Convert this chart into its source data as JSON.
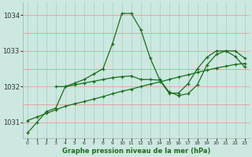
{
  "line1": {
    "x": [
      0,
      1,
      2,
      3,
      4,
      5,
      6,
      7,
      8,
      9,
      10,
      11,
      12,
      13,
      14,
      15,
      16,
      17,
      18,
      19,
      20,
      21,
      22,
      23
    ],
    "y": [
      1030.7,
      1031.0,
      1031.3,
      1031.4,
      1032.0,
      1032.1,
      1032.2,
      1032.35,
      1032.5,
      1033.2,
      1034.05,
      1034.05,
      1033.6,
      1032.8,
      1032.2,
      1031.85,
      1031.75,
      1031.8,
      1032.05,
      1032.6,
      1032.9,
      1033.0,
      1033.0,
      1032.8
    ]
  },
  "line2": {
    "x": [
      0,
      1,
      2,
      3,
      4,
      5,
      6,
      7,
      8,
      9,
      10,
      11,
      12,
      13,
      14,
      15,
      16,
      17,
      18,
      19,
      20,
      21,
      22,
      23
    ],
    "y": [
      1031.05,
      1031.15,
      1031.25,
      1031.35,
      1031.45,
      1031.52,
      1031.58,
      1031.65,
      1031.72,
      1031.8,
      1031.87,
      1031.93,
      1032.0,
      1032.07,
      1032.13,
      1032.2,
      1032.27,
      1032.33,
      1032.4,
      1032.46,
      1032.52,
      1032.57,
      1032.62,
      1032.65
    ]
  },
  "line3": {
    "x": [
      3,
      4,
      5,
      6,
      7,
      8,
      9,
      10,
      11,
      12,
      13,
      14,
      15,
      16,
      17,
      18,
      19,
      20,
      21,
      22,
      23
    ],
    "y": [
      1032.0,
      1032.0,
      1032.05,
      1032.1,
      1032.15,
      1032.2,
      1032.25,
      1032.28,
      1032.3,
      1032.2,
      1032.2,
      1032.18,
      1031.82,
      1031.82,
      1032.08,
      1032.5,
      1032.82,
      1033.0,
      1033.0,
      1032.85,
      1032.55
    ]
  },
  "line_color": "#1a6e1a",
  "bg_color": "#cce8e0",
  "grid_color_v": "#aad4c8",
  "grid_color_h": "#f0a0a0",
  "ylabel_ticks": [
    1031,
    1032,
    1033,
    1034
  ],
  "xlabel_ticks": [
    0,
    1,
    2,
    3,
    4,
    5,
    6,
    7,
    8,
    9,
    10,
    11,
    12,
    13,
    14,
    15,
    16,
    17,
    18,
    19,
    20,
    21,
    22,
    23
  ],
  "ylim": [
    1030.55,
    1034.35
  ],
  "xlim": [
    -0.5,
    23.5
  ],
  "xlabel": "Graphe pression niveau de la mer (hPa)",
  "marker": "+"
}
